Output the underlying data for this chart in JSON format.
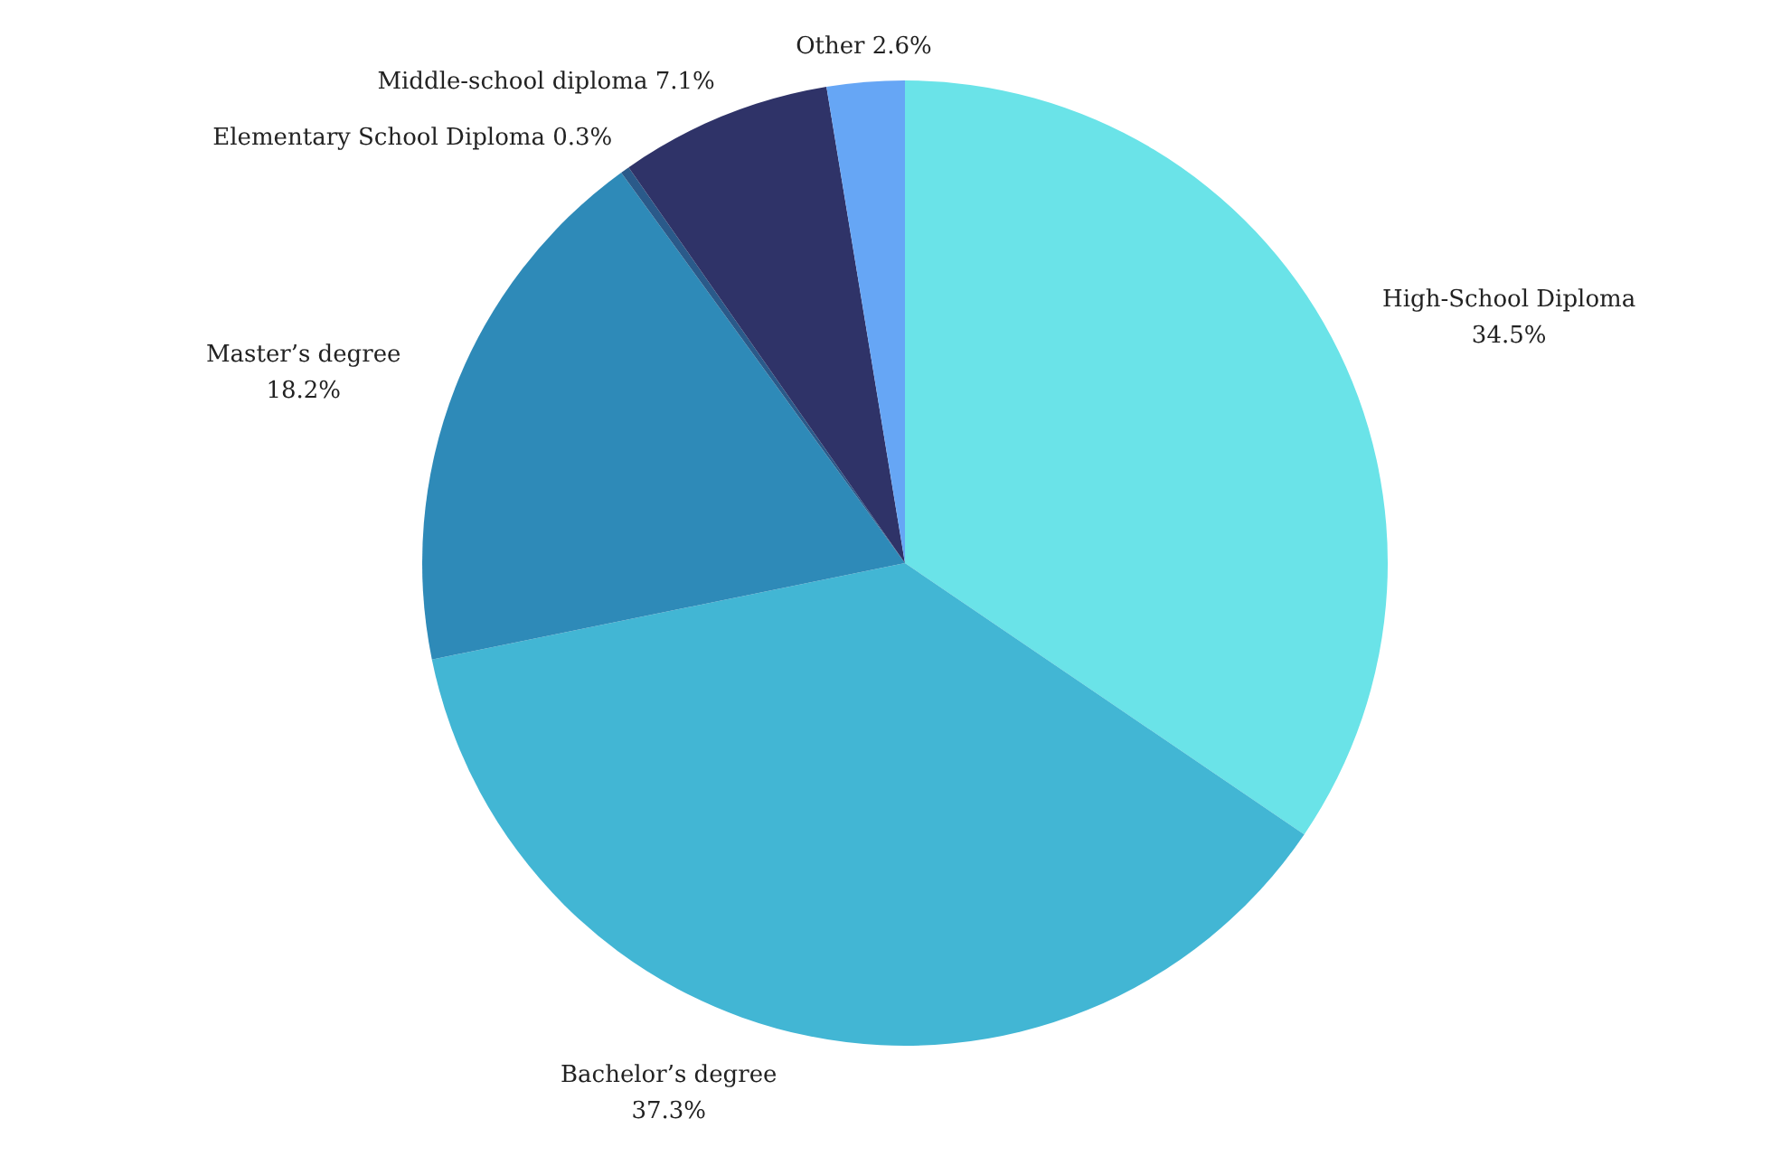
{
  "chart_data": {
    "type": "pie",
    "categories": [
      "High-School Diploma",
      "Bachelor’s degree",
      "Master’s degree",
      "Elementary School Diploma",
      "Middle-school diploma",
      "Other"
    ],
    "values": [
      34.5,
      37.3,
      18.2,
      0.3,
      7.1,
      2.6
    ],
    "colors": [
      "#6ae3e8",
      "#42b6d4",
      "#2e8ab8",
      "#2a5a8a",
      "#2f3368",
      "#66a6f5"
    ],
    "value_labels": [
      "34.5%",
      "37.3%",
      "18.2%",
      "0.3%",
      "7.1%",
      "2.6%"
    ]
  }
}
